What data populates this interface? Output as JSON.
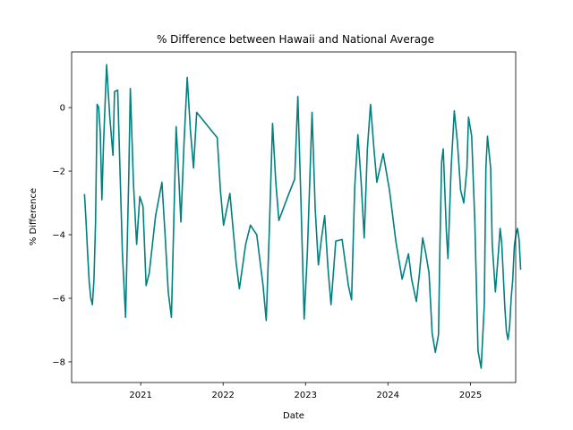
{
  "chart_data": {
    "type": "line",
    "title": "% Difference between Hawaii and National Average",
    "xlabel": "Date",
    "ylabel": "% Difference",
    "xlim": [
      "2020-03-01",
      "2025-07-20"
    ],
    "ylim": [
      -8.65,
      1.75
    ],
    "x_ticks": [
      "2021",
      "2022",
      "2023",
      "2024",
      "2025"
    ],
    "y_ticks": [
      0,
      -2,
      -4,
      -6,
      -8
    ],
    "grid": false,
    "legend": "none",
    "series": [
      {
        "color": "#008080",
        "points": [
          [
            "2020-04-27",
            -2.72
          ],
          [
            "2020-05-04",
            -3.6
          ],
          [
            "2020-05-11",
            -4.6
          ],
          [
            "2020-05-18",
            -5.5
          ],
          [
            "2020-05-25",
            -6.0
          ],
          [
            "2020-06-01",
            -6.2
          ],
          [
            "2020-06-08",
            -5.4
          ],
          [
            "2020-06-15",
            -3.6
          ],
          [
            "2020-06-22",
            0.1
          ],
          [
            "2020-06-29",
            0.0
          ],
          [
            "2020-07-06",
            -0.8
          ],
          [
            "2020-07-13",
            -2.9
          ],
          [
            "2020-07-20",
            -1.2
          ],
          [
            "2020-08-03",
            1.35
          ],
          [
            "2020-08-17",
            -0.3
          ],
          [
            "2020-08-31",
            -1.5
          ],
          [
            "2020-09-07",
            0.5
          ],
          [
            "2020-09-21",
            0.55
          ],
          [
            "2020-10-12",
            -4.6
          ],
          [
            "2020-10-26",
            -6.6
          ],
          [
            "2020-11-09",
            -2.2
          ],
          [
            "2020-11-16",
            0.6
          ],
          [
            "2020-11-30",
            -2.4
          ],
          [
            "2020-12-14",
            -4.3
          ],
          [
            "2020-12-28",
            -2.8
          ],
          [
            "2021-01-11",
            -3.1
          ],
          [
            "2021-01-25",
            -5.6
          ],
          [
            "2021-02-08",
            -5.2
          ],
          [
            "2021-03-08",
            -3.4
          ],
          [
            "2021-04-05",
            -2.35
          ],
          [
            "2021-04-19",
            -4.0
          ],
          [
            "2021-05-03",
            -5.8
          ],
          [
            "2021-05-17",
            -6.6
          ],
          [
            "2021-06-07",
            -0.6
          ],
          [
            "2021-06-14",
            -1.5
          ],
          [
            "2021-06-28",
            -3.6
          ],
          [
            "2021-07-12",
            -1.1
          ],
          [
            "2021-07-26",
            0.95
          ],
          [
            "2021-08-09",
            -0.7
          ],
          [
            "2021-08-23",
            -1.9
          ],
          [
            "2021-09-06",
            -0.15
          ],
          [
            "2021-12-06",
            -0.95
          ],
          [
            "2021-12-20",
            -2.6
          ],
          [
            "2022-01-03",
            -3.7
          ],
          [
            "2022-01-31",
            -2.7
          ],
          [
            "2022-02-28",
            -4.9
          ],
          [
            "2022-03-14",
            -5.7
          ],
          [
            "2022-04-11",
            -4.3
          ],
          [
            "2022-05-02",
            -3.7
          ],
          [
            "2022-05-30",
            -4.0
          ],
          [
            "2022-06-27",
            -5.6
          ],
          [
            "2022-07-11",
            -6.7
          ],
          [
            "2022-07-25",
            -3.8
          ],
          [
            "2022-08-08",
            -0.5
          ],
          [
            "2022-08-22",
            -2.3
          ],
          [
            "2022-09-05",
            -3.55
          ],
          [
            "2022-10-17",
            -2.75
          ],
          [
            "2022-11-14",
            -2.25
          ],
          [
            "2022-11-28",
            0.35
          ],
          [
            "2022-12-12",
            -3.0
          ],
          [
            "2022-12-26",
            -6.65
          ],
          [
            "2023-01-09",
            -4.6
          ],
          [
            "2023-01-30",
            -0.15
          ],
          [
            "2023-02-13",
            -3.2
          ],
          [
            "2023-02-27",
            -4.95
          ],
          [
            "2023-03-13",
            -4.1
          ],
          [
            "2023-03-27",
            -3.4
          ],
          [
            "2023-04-10",
            -5.0
          ],
          [
            "2023-04-24",
            -6.2
          ],
          [
            "2023-05-15",
            -4.2
          ],
          [
            "2023-06-12",
            -4.15
          ],
          [
            "2023-07-10",
            -5.6
          ],
          [
            "2023-07-24",
            -6.05
          ],
          [
            "2023-08-07",
            -2.5
          ],
          [
            "2023-08-21",
            -0.85
          ],
          [
            "2023-09-04",
            -2.3
          ],
          [
            "2023-09-18",
            -4.1
          ],
          [
            "2023-10-02",
            -1.3
          ],
          [
            "2023-10-16",
            0.1
          ],
          [
            "2023-10-30",
            -1.2
          ],
          [
            "2023-11-13",
            -2.35
          ],
          [
            "2023-12-11",
            -1.45
          ],
          [
            "2024-01-08",
            -2.6
          ],
          [
            "2024-02-05",
            -4.2
          ],
          [
            "2024-03-04",
            -5.4
          ],
          [
            "2024-04-01",
            -4.6
          ],
          [
            "2024-04-15",
            -5.4
          ],
          [
            "2024-05-06",
            -6.1
          ],
          [
            "2024-05-20",
            -5.2
          ],
          [
            "2024-06-03",
            -4.1
          ],
          [
            "2024-06-17",
            -4.6
          ],
          [
            "2024-07-01",
            -5.2
          ],
          [
            "2024-07-15",
            -7.1
          ],
          [
            "2024-07-29",
            -7.7
          ],
          [
            "2024-08-12",
            -7.15
          ],
          [
            "2024-08-19",
            -4.1
          ],
          [
            "2024-08-26",
            -1.7
          ],
          [
            "2024-09-02",
            -1.3
          ],
          [
            "2024-09-16",
            -3.9
          ],
          [
            "2024-09-23",
            -4.75
          ],
          [
            "2024-10-07",
            -1.9
          ],
          [
            "2024-10-21",
            -0.1
          ],
          [
            "2024-11-04",
            -1.1
          ],
          [
            "2024-11-18",
            -2.6
          ],
          [
            "2024-12-02",
            -3.0
          ],
          [
            "2024-12-16",
            -1.9
          ],
          [
            "2024-12-23",
            -0.3
          ],
          [
            "2025-01-06",
            -0.9
          ],
          [
            "2025-01-20",
            -3.6
          ],
          [
            "2025-02-03",
            -7.65
          ],
          [
            "2025-02-17",
            -8.2
          ],
          [
            "2025-03-03",
            -6.2
          ],
          [
            "2025-03-10",
            -1.9
          ],
          [
            "2025-03-17",
            -0.9
          ],
          [
            "2025-03-31",
            -1.9
          ],
          [
            "2025-04-07",
            -4.3
          ],
          [
            "2025-04-21",
            -5.8
          ],
          [
            "2025-05-05",
            -4.5
          ],
          [
            "2025-05-12",
            -3.8
          ],
          [
            "2025-05-19",
            -4.25
          ],
          [
            "2025-06-02",
            -6.3
          ],
          [
            "2025-06-09",
            -7.05
          ],
          [
            "2025-06-16",
            -7.3
          ],
          [
            "2025-06-23",
            -6.9
          ],
          [
            "2025-06-30",
            -6.0
          ],
          [
            "2025-07-07",
            -5.4
          ],
          [
            "2025-07-14",
            -4.35
          ],
          [
            "2025-07-21",
            -4.0
          ],
          [
            "2025-07-28",
            -3.8
          ],
          [
            "2025-08-04",
            -4.15
          ],
          [
            "2025-08-11",
            -5.1
          ]
        ]
      }
    ]
  }
}
